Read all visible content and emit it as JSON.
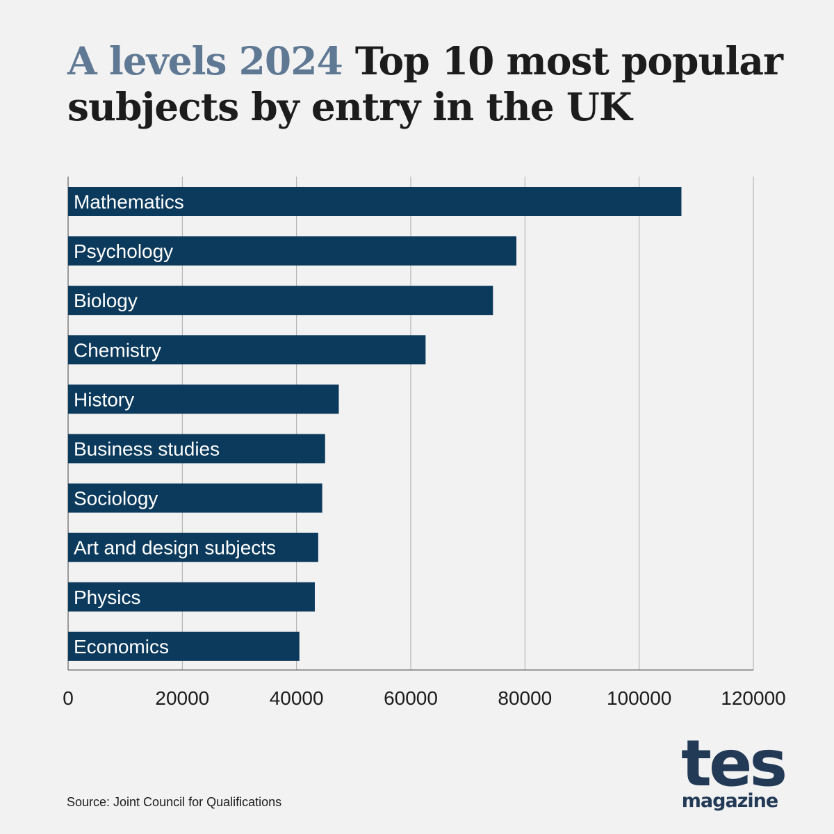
{
  "header": {
    "title_accent": "A levels 2024",
    "title_main": "Top 10 most popular subjects by entry in the UK"
  },
  "chart_data": {
    "type": "bar",
    "orientation": "horizontal",
    "title": "A levels 2024 Top 10 most popular subjects by entry in the UK",
    "xlabel": "",
    "ylabel": "",
    "categories": [
      "Mathematics",
      "Psychology",
      "Biology",
      "Chemistry",
      "History",
      "Business studies",
      "Sociology",
      "Art and design subjects",
      "Physics",
      "Economics"
    ],
    "values": [
      107400,
      78500,
      74400,
      62600,
      47400,
      45000,
      44500,
      43800,
      43200,
      40500
    ],
    "xlim": [
      0,
      120000
    ],
    "xticks": [
      "0",
      "20000",
      "40000",
      "60000",
      "80000",
      "100000",
      "120000"
    ],
    "grid": true,
    "bar_color": "#0c3a5c",
    "label_position": "inside-left"
  },
  "footer": {
    "source": "Source: Joint Council for Qualifications",
    "logo_primary": "tes",
    "logo_secondary": "magazine"
  }
}
